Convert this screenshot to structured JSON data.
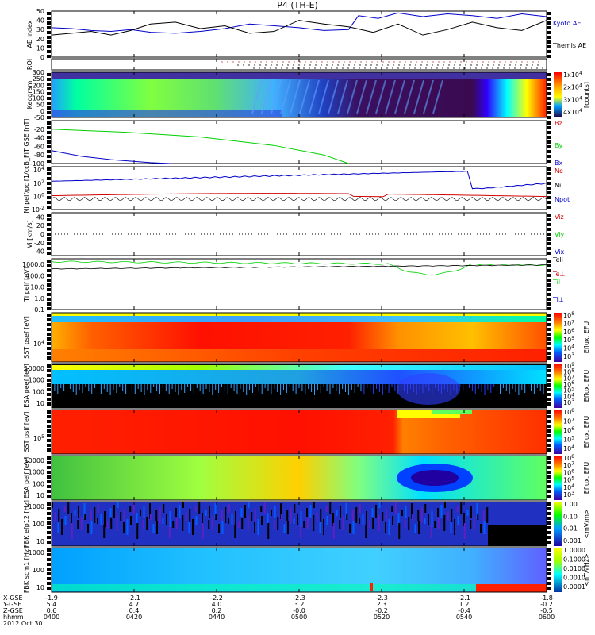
{
  "title": "P4 (TH-E)",
  "colors": {
    "black": "#000000",
    "blue": "#0000c8",
    "green": "#00d000",
    "red": "#d00000",
    "ae_blue": "#0000c8",
    "dark_purple": "#2a003a"
  },
  "ephemeris": {
    "labels": [
      "X-GSE",
      "Y-GSE",
      "Z-GSE",
      "hhmm",
      "2012 Oct 30"
    ],
    "columns": [
      [
        "-1.9",
        "5.4",
        "0.6",
        "0400"
      ],
      [
        "-2.1",
        "4.7",
        "0.4",
        "0420"
      ],
      [
        "-2.2",
        "4.0",
        "0.2",
        "0440"
      ],
      [
        "-2.3",
        "3.2",
        "-0.0",
        "0500"
      ],
      [
        "-2.3",
        "2.3",
        "-0.2",
        "0520"
      ],
      [
        "-2.1",
        "1.2",
        "-0.4",
        "0540"
      ],
      [
        "-1.8",
        "-0.2",
        "-0.5",
        "0600"
      ]
    ]
  },
  "chart_data": [
    {
      "type": "line",
      "id": "ae",
      "ylabel": "AE Index",
      "ylim": [
        0,
        50
      ],
      "yticks": [
        "0",
        "10",
        "20",
        "30",
        "40",
        "50"
      ],
      "x_range_hhmm": [
        "0400",
        "0600"
      ],
      "series": [
        {
          "name": "Kyoto AE",
          "color": "#0000c8",
          "x": [
            0,
            0.04,
            0.08,
            0.12,
            0.16,
            0.2,
            0.25,
            0.3,
            0.35,
            0.4,
            0.45,
            0.5,
            0.55,
            0.6,
            0.62,
            0.66,
            0.7,
            0.75,
            0.8,
            0.85,
            0.9,
            0.95,
            1.0
          ],
          "values": [
            32,
            31,
            29,
            28,
            30,
            27,
            26,
            28,
            31,
            36,
            34,
            32,
            29,
            30,
            45,
            42,
            48,
            44,
            47,
            45,
            42,
            47,
            44
          ]
        },
        {
          "name": "Themis AE",
          "color": "#000000",
          "x": [
            0,
            0.04,
            0.08,
            0.12,
            0.16,
            0.2,
            0.25,
            0.3,
            0.35,
            0.4,
            0.45,
            0.5,
            0.55,
            0.6,
            0.65,
            0.7,
            0.75,
            0.8,
            0.85,
            0.9,
            0.95,
            1.0
          ],
          "values": [
            24,
            26,
            28,
            24,
            29,
            36,
            38,
            31,
            34,
            26,
            28,
            40,
            36,
            33,
            27,
            36,
            24,
            30,
            38,
            32,
            29,
            40
          ]
        }
      ]
    },
    {
      "type": "scatter",
      "id": "roi",
      "ylabel": "ROI",
      "note": "dotted region-of-interest flags begin near 0450"
    },
    {
      "type": "heatmap",
      "id": "keogram",
      "ylabel": "Keogram",
      "ylim": [
        -50,
        300
      ],
      "yticks": [
        "-50",
        "0",
        "50",
        "100",
        "150",
        "200",
        "250",
        "300"
      ],
      "colorbar": {
        "label": "[counts]",
        "ticks": [
          "1x10^4",
          "2x10^4",
          "3x10^4",
          "4x10^4"
        ]
      }
    },
    {
      "type": "line",
      "id": "bfit",
      "ylabel": "B_FIT GSE [nT]",
      "ylim": [
        -100,
        0
      ],
      "yticks": [
        "-100",
        "-80",
        "-60",
        "-40",
        "-20"
      ],
      "series": [
        {
          "name": "Bz",
          "color": "#d00000",
          "x": [],
          "values": []
        },
        {
          "name": "By",
          "color": "#00d000",
          "x": [
            0,
            0.15,
            0.3,
            0.45,
            0.55,
            0.6
          ],
          "values": [
            -20,
            -27,
            -38,
            -58,
            -80,
            -100
          ]
        },
        {
          "name": "Bx",
          "color": "#0000c8",
          "x": [
            0,
            0.06,
            0.12,
            0.2,
            0.24
          ],
          "values": [
            -70,
            -83,
            -91,
            -98,
            -100
          ]
        }
      ]
    },
    {
      "type": "line",
      "id": "ni",
      "ylabel": "Ni peif/pc [1/cc]",
      "ylim_log": [
        -2,
        4.5
      ],
      "yticks": [
        "10^-2",
        "10^0",
        "10^2",
        "10^4"
      ],
      "series": [
        {
          "name": "Ne",
          "color": "#d00000"
        },
        {
          "name": "Ni",
          "color": "#000000"
        },
        {
          "name": "Npot",
          "color": "#0000c8"
        }
      ]
    },
    {
      "type": "line",
      "id": "vi",
      "ylabel": "Vi [km/s]",
      "ylim": [
        -50,
        50
      ],
      "yticks": [
        "-40",
        "-20",
        "0",
        "20",
        "40"
      ],
      "series": [
        {
          "name": "Viz",
          "color": "#d00000"
        },
        {
          "name": "Viy",
          "color": "#00d000"
        },
        {
          "name": "Vix",
          "color": "#0000c8"
        }
      ]
    },
    {
      "type": "line",
      "id": "ti",
      "ylabel": "Ti peif [eV]",
      "ylim_log": [
        -1,
        3.5
      ],
      "yticks": [
        "0.1",
        "1.0",
        "10.0",
        "100.0",
        "1000.0"
      ],
      "series": [
        {
          "name": "Tell",
          "color": "#000000"
        },
        {
          "name": "Te⊥",
          "color": "#d00000"
        },
        {
          "name": "Til",
          "color": "#00d000"
        },
        {
          "name": "Ti⊥",
          "color": "#0000c8"
        }
      ]
    },
    {
      "type": "heatmap",
      "id": "sst_e",
      "ylabel": "SST psef [eV]",
      "yticks": [
        "10^4"
      ],
      "colorbar": {
        "label": "Eflux, EFU",
        "ticks": [
          "10^8",
          "10^7",
          "10^6",
          "10^5",
          "10^4",
          "10^3"
        ]
      }
    },
    {
      "type": "heatmap",
      "id": "esa_e",
      "ylabel": "ESA peef [eV]",
      "yticks": [
        "10",
        "100",
        "1000",
        "10000"
      ],
      "colorbar": {
        "label": "Eflux, EFU",
        "ticks": [
          "10^9",
          "10^8",
          "10^7",
          "10^6",
          "10^5",
          "10^4",
          "10^3"
        ]
      }
    },
    {
      "type": "heatmap",
      "id": "sst_i",
      "ylabel": "SST psif [eV]",
      "yticks": [
        "10^5"
      ],
      "colorbar": {
        "label": "Eflux, EFU",
        "ticks": [
          "10^8",
          "10^7",
          "10^6",
          "10^5",
          "10^4"
        ]
      }
    },
    {
      "type": "heatmap",
      "id": "esa_i",
      "ylabel": "ESA peif [eV]",
      "yticks": [
        "10",
        "100",
        "1000",
        "10000"
      ],
      "colorbar": {
        "label": "Eflux, EFU",
        "ticks": [
          "10^8",
          "10^7",
          "10^6",
          "10^5",
          "10^4",
          "10^3"
        ]
      }
    },
    {
      "type": "heatmap",
      "id": "fbk_e",
      "ylabel": "FBK efp12 [Hz]",
      "yticks": [
        "10",
        "100",
        "1000"
      ],
      "colorbar": {
        "label": "<mV/m>",
        "ticks": [
          "1.00",
          "0.10",
          "0.01",
          "0.001"
        ]
      }
    },
    {
      "type": "heatmap",
      "id": "fbk_b",
      "ylabel": "FBK scm1 [Hz]",
      "yticks": [
        "10",
        "100",
        "1000"
      ],
      "colorbar": {
        "label": "<nT/√Hz>",
        "ticks": [
          "1.0000",
          "0.1000",
          "0.0100",
          "0.0010",
          "0.0001"
        ]
      }
    }
  ]
}
